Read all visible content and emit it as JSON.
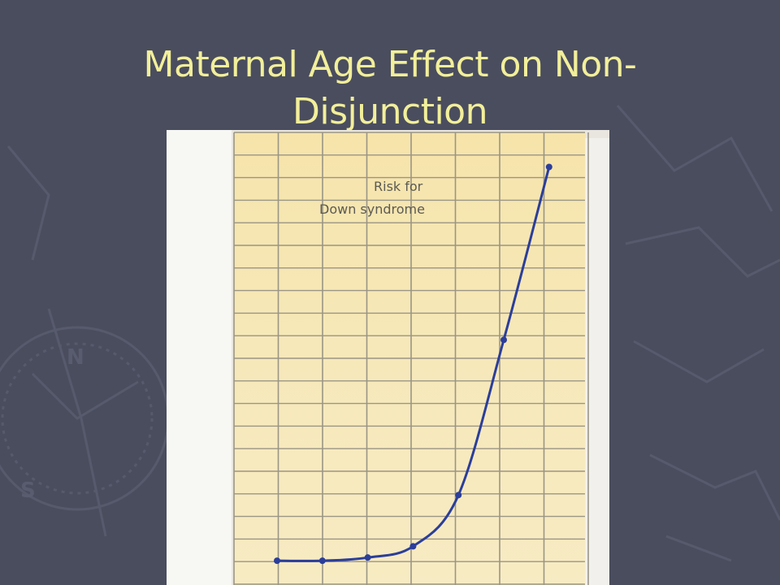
{
  "slide": {
    "title_line1": "Maternal Age Effect on Non-",
    "title_line2": "Disjunction",
    "title_color": "#f2ef9a",
    "background_color": "#4a4d5e"
  },
  "chart_data": {
    "type": "line",
    "annotation_line1": "Risk for",
    "annotation_line2": "Down syndrome",
    "x": [
      1,
      2,
      3,
      4,
      5,
      6,
      7
    ],
    "series": [
      {
        "values": [
          0.4,
          0.4,
          0.6,
          1.3,
          4.5,
          14.2,
          25.0
        ]
      }
    ],
    "grid": true,
    "line_color": "#2b3e9a",
    "paper_color": "#f4e6b4",
    "grid_color": "#9a9585"
  }
}
